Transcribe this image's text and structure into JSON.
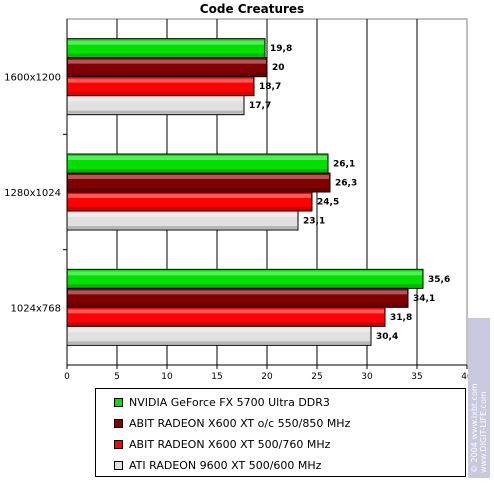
{
  "chart_data": {
    "type": "bar",
    "orientation": "horizontal",
    "title": "Code Creatures",
    "categories": [
      "1600x1200",
      "1280x1024",
      "1024x768"
    ],
    "series": [
      {
        "name": "NVIDIA GeForce FX 5700 Ultra DDR3",
        "color": "#00e000",
        "values": [
          19.8,
          26.1,
          35.6
        ],
        "labels": [
          "19,8",
          "26,1",
          "35,6"
        ]
      },
      {
        "name": "ABIT RADEON X600 XT o/c 550/850 MHz",
        "color": "#800000",
        "values": [
          20,
          26.3,
          34.1
        ],
        "labels": [
          "20",
          "26,3",
          "34,1"
        ]
      },
      {
        "name": "ABIT RADEON X600 XT 500/760 MHz",
        "color": "#ff0000",
        "values": [
          18.7,
          24.5,
          31.8
        ],
        "labels": [
          "18,7",
          "24,5",
          "31,8"
        ]
      },
      {
        "name": "ATI RADEON 9600 XT 500/600 MHz",
        "color": "#e0e0e0",
        "values": [
          17.7,
          23.1,
          30.4
        ],
        "labels": [
          "17,7",
          "23,1",
          "30,4"
        ]
      }
    ],
    "xlim": [
      0,
      40
    ],
    "xticks": [
      "0",
      "5",
      "10",
      "15",
      "20",
      "25",
      "30",
      "35",
      "40"
    ],
    "grid": true,
    "legend_position": "bottom"
  },
  "watermark": {
    "line1": "© 2004 www.ixbt.com",
    "line2": "www.DIGIT-LIFE.com"
  }
}
